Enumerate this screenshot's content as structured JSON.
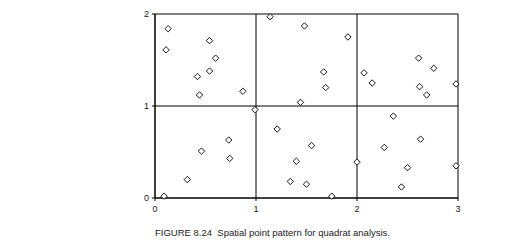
{
  "chart_data": {
    "type": "scatter",
    "title": "FIGURE 8.24  Spatial point pattern for quadrat analysis.",
    "x": [
      0.13,
      0.11,
      0.54,
      0.6,
      0.54,
      0.42,
      0.44,
      0.87,
      0.99,
      1.14,
      1.48,
      1.91,
      1.67,
      1.69,
      1.44,
      2.07,
      2.15,
      2.61,
      2.76,
      2.62,
      2.69,
      2.98,
      0.73,
      0.74,
      0.46,
      0.32,
      0.09,
      1.21,
      1.55,
      1.4,
      1.34,
      1.5,
      1.75,
      2.0,
      2.27,
      2.36,
      2.63,
      2.5,
      2.44,
      2.98
    ],
    "values": [
      1.84,
      1.61,
      1.71,
      1.52,
      1.38,
      1.32,
      1.12,
      1.16,
      0.96,
      1.97,
      1.87,
      1.75,
      1.37,
      1.2,
      1.04,
      1.36,
      1.25,
      1.52,
      1.41,
      1.21,
      1.12,
      1.24,
      0.63,
      0.43,
      0.51,
      0.2,
      0.02,
      0.75,
      0.57,
      0.4,
      0.18,
      0.15,
      0.02,
      0.39,
      0.55,
      0.89,
      0.64,
      0.33,
      0.12,
      0.35
    ],
    "xlim": [
      0,
      3
    ],
    "ylim": [
      0,
      2
    ],
    "xticks": [
      0,
      1,
      2,
      3
    ],
    "yticks": [
      0,
      1,
      2
    ],
    "grid": true,
    "marker": "diamond",
    "color": "#000000"
  }
}
